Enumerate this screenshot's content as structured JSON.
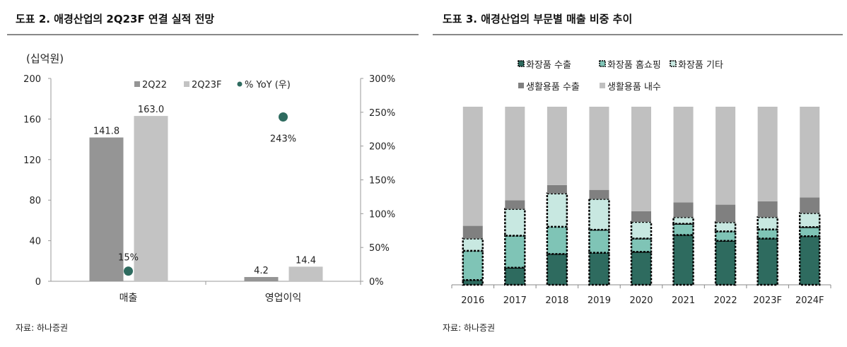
{
  "left": {
    "title": "도표 2. 애경산업의 2Q23F 연결 실적 전망",
    "source": "자료: 하나증권",
    "chart_data": {
      "type": "bar",
      "unit_label": "(십억원)",
      "categories": [
        "매출",
        "영업이익"
      ],
      "series": [
        {
          "name": "2Q22",
          "values": [
            141.8,
            4.2
          ],
          "labels": [
            "141.8",
            "4.2"
          ],
          "color": "#959595"
        },
        {
          "name": "2Q23F",
          "values": [
            163.0,
            14.4
          ],
          "labels": [
            "163.0",
            "14.4"
          ],
          "color": "#c3c3c3"
        },
        {
          "name": "% YoY (우)",
          "type": "scatter",
          "axis": "right",
          "values": [
            15,
            243
          ],
          "labels": [
            "15%",
            "243%"
          ],
          "color": "#2e6b5f"
        }
      ],
      "ylim": [
        0,
        200
      ],
      "yticks": [
        "0",
        "40",
        "80",
        "120",
        "160",
        "200"
      ],
      "ylim_right": [
        0,
        300
      ],
      "yticks_right": [
        "0%",
        "50%",
        "100%",
        "150%",
        "200%",
        "250%",
        "300%"
      ],
      "legend": "top"
    }
  },
  "right": {
    "title": "도표 3. 애경산업의 부문별 매출 비중 추이",
    "source": "자료: 하나증권",
    "chart_data": {
      "type": "bar",
      "stacked": true,
      "categories": [
        "2016",
        "2017",
        "2018",
        "2019",
        "2020",
        "2021",
        "2022",
        "2023F",
        "2024F"
      ],
      "ylim": [
        0,
        100
      ],
      "series": [
        {
          "name": "화장품 수출",
          "values": [
            2.7,
            9.6,
            17.3,
            18.0,
            18.5,
            28.0,
            24.7,
            26.0,
            27.3
          ],
          "color": "#2e6b5f",
          "dotted": true
        },
        {
          "name": "화장품 홈쇼핑",
          "values": [
            16.4,
            18.0,
            15.3,
            12.9,
            7.5,
            6.3,
            5.3,
            5.1,
            5.1
          ],
          "color": "#7fc4b6",
          "dotted": true
        },
        {
          "name": "화장품 기타",
          "values": [
            6.9,
            15.0,
            18.7,
            17.3,
            9.3,
            3.7,
            5.1,
            6.9,
            7.9
          ],
          "color": "#c8e8e1",
          "dotted": true
        },
        {
          "name": "생활용품 수출",
          "values": [
            7.1,
            4.9,
            4.7,
            5.1,
            6.0,
            8.3,
            9.9,
            8.9,
            8.7
          ],
          "color": "#808080"
        },
        {
          "name": "생활용품 내수",
          "values": [
            66.9,
            52.5,
            44.0,
            46.7,
            58.7,
            53.7,
            55.0,
            53.1,
            51.0
          ],
          "color": "#c0c0c0"
        }
      ],
      "legend": "top"
    }
  }
}
